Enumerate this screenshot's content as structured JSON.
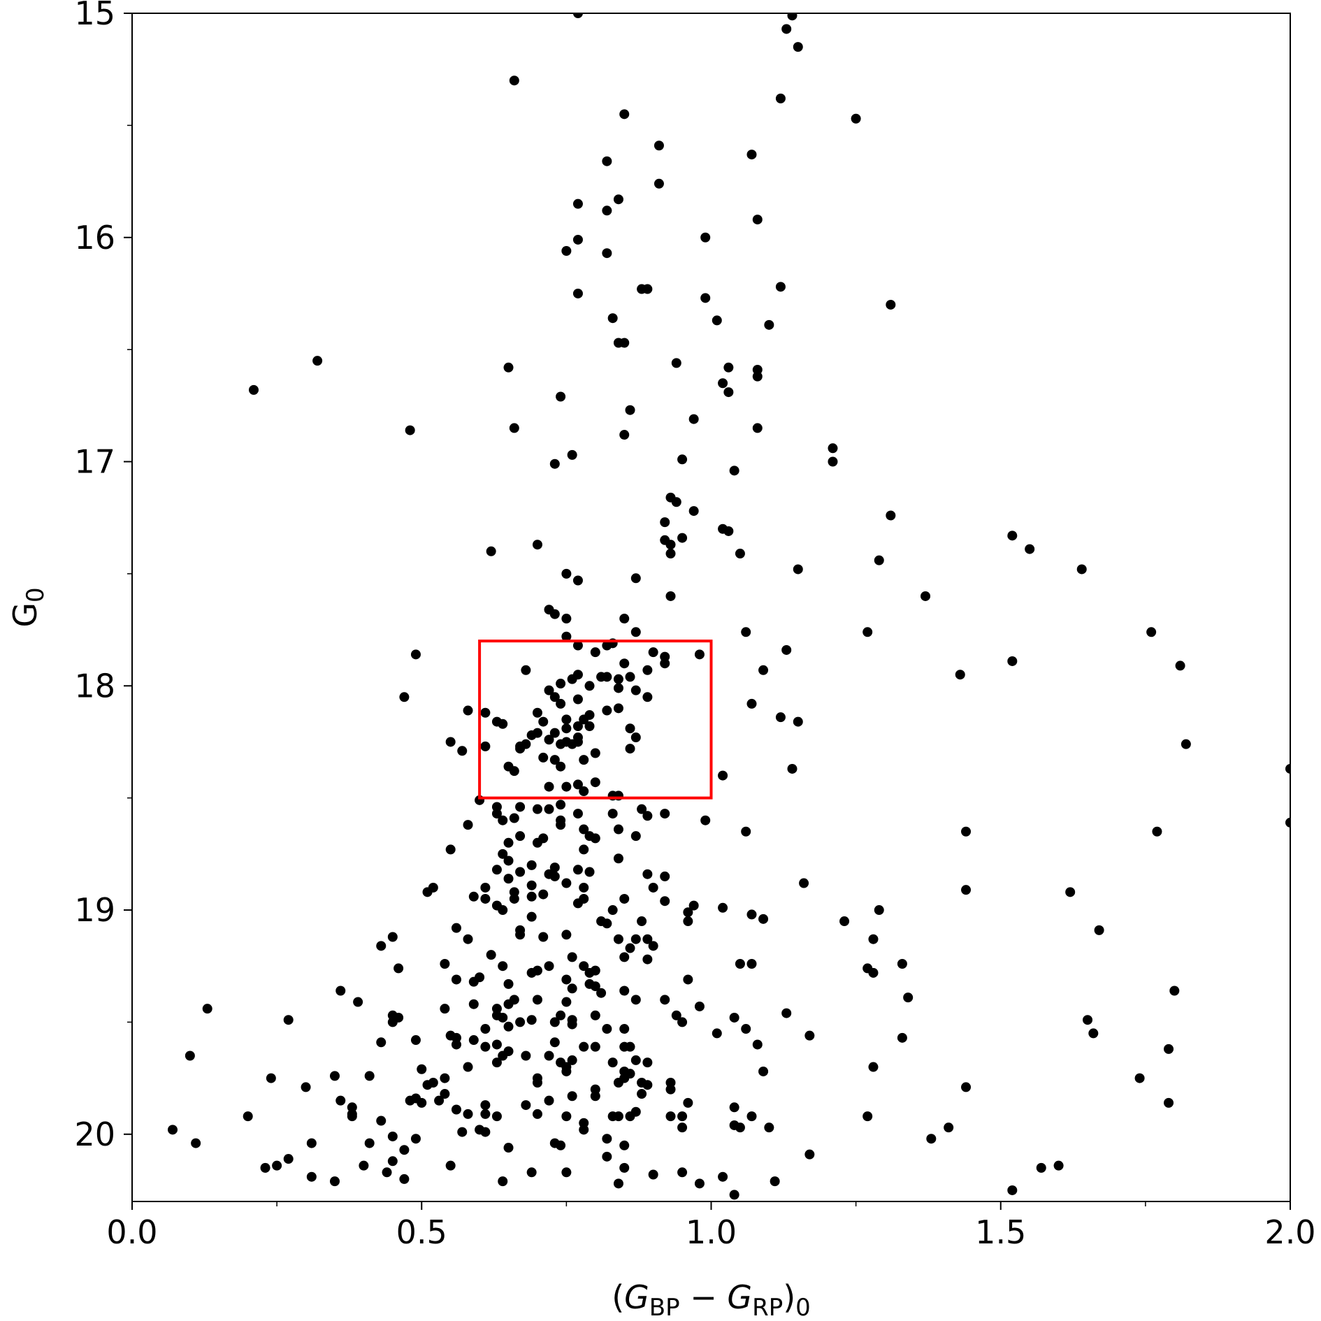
{
  "chart_data": {
    "type": "scatter",
    "xlabel": [
      {
        "text": "("
      },
      {
        "text": "G",
        "italic": true
      },
      {
        "text": "BP",
        "sub": true
      },
      {
        "text": " − "
      },
      {
        "text": "G",
        "italic": true
      },
      {
        "text": "RP",
        "sub": true
      },
      {
        "text": ")"
      },
      {
        "text": "0",
        "sub": true
      }
    ],
    "ylabel": [
      {
        "text": "G"
      },
      {
        "text": "0",
        "sub": true
      }
    ],
    "xlim": [
      0,
      2
    ],
    "ylim": [
      20.3,
      15
    ],
    "xticks": [
      {
        "value": 0,
        "label": "0.0"
      },
      {
        "value": 0.5,
        "label": "0.5"
      },
      {
        "value": 1,
        "label": "1.0"
      },
      {
        "value": 1.5,
        "label": "1.5"
      },
      {
        "value": 2,
        "label": "2.0"
      }
    ],
    "yticks": [
      15,
      16,
      17,
      18,
      19,
      20
    ],
    "xminorticks": [
      0.25,
      0.75,
      1.25,
      1.75
    ],
    "yminorticks": [
      15.5,
      16.5,
      17.5,
      18.5,
      19.5
    ],
    "color": "#000000",
    "highlight_box": {
      "x": [
        0.6,
        1.0
      ],
      "y": [
        17.8,
        18.5
      ],
      "color": "#ff0000"
    },
    "x": [
      0.77,
      1.14,
      1.13,
      1.15,
      0.66,
      1.12,
      0.85,
      1.25,
      0.91,
      1.07,
      0.82,
      0.91,
      0.77,
      0.84,
      0.82,
      1.08,
      0.99,
      0.77,
      0.75,
      0.82,
      1.12,
      0.89,
      0.88,
      0.77,
      0.99,
      1.31,
      0.83,
      1.01,
      1.1,
      0.84,
      0.85,
      0.32,
      0.94,
      0.65,
      1.03,
      1.08,
      1.08,
      1.02,
      0.21,
      1.03,
      0.74,
      0.86,
      0.97,
      0.48,
      0.66,
      1.08,
      0.85,
      1.21,
      0.76,
      1.21,
      0.95,
      0.73,
      1.04,
      0.93,
      0.94,
      0.97,
      1.31,
      0.92,
      1.02,
      1.03,
      1.52,
      0.92,
      0.95,
      0.93,
      0.7,
      1.55,
      0.62,
      0.93,
      1.05,
      1.29,
      1.15,
      1.64,
      0.75,
      0.77,
      0.87,
      1.37,
      0.93,
      0.72,
      0.73,
      0.75,
      0.85,
      1.06,
      1.27,
      1.76,
      0.75,
      0.87,
      0.82,
      0.83,
      0.77,
      0.49,
      0.9,
      0.98,
      0.92,
      0.8,
      1.13,
      1.52,
      1.81,
      0.92,
      0.85,
      0.68,
      0.89,
      1.09,
      0.77,
      0.81,
      0.86,
      0.76,
      0.82,
      0.84,
      0.74,
      0.79,
      1.43,
      0.84,
      0.87,
      0.72,
      0.73,
      0.89,
      0.47,
      0.77,
      0.74,
      1.07,
      0.84,
      0.82,
      0.58,
      0.61,
      0.7,
      0.79,
      0.78,
      1.12,
      0.75,
      0.71,
      0.63,
      0.64,
      1.15,
      0.79,
      0.77,
      0.86,
      0.75,
      0.7,
      0.73,
      0.69,
      0.87,
      0.77,
      0.72,
      0.75,
      0.55,
      0.77,
      0.68,
      0.76,
      1.82,
      0.74,
      0.67,
      0.61,
      0.67,
      0.86,
      0.57,
      0.8,
      0.71,
      0.73,
      0.78,
      0.74,
      0.65,
      0.66,
      1.14,
      2.0,
      1.02,
      0.77,
      0.72,
      0.75,
      0.8,
      0.78,
      0.84,
      0.83,
      0.6,
      0.74,
      0.88,
      0.63,
      0.67,
      0.7,
      0.72,
      0.77,
      0.92,
      0.83,
      0.89,
      0.63,
      0.66,
      0.99,
      0.74,
      2.0,
      0.58,
      0.64,
      0.74,
      0.78,
      0.84,
      1.06,
      1.44,
      0.67,
      0.87,
      1.77,
      0.79,
      0.8,
      0.71,
      0.65,
      0.7,
      0.78,
      0.55,
      0.64,
      0.84,
      0.65,
      0.69,
      0.63,
      0.73,
      0.67,
      0.77,
      0.79,
      0.73,
      0.72,
      0.89,
      0.92,
      0.65,
      1.16,
      0.75,
      0.69,
      0.61,
      0.78,
      0.52,
      0.9,
      1.44,
      1.62,
      0.51,
      0.66,
      0.71,
      0.59,
      0.61,
      0.78,
      0.85,
      0.66,
      0.69,
      0.92,
      0.97,
      0.77,
      1.02,
      0.63,
      0.64,
      1.29,
      0.96,
      0.83,
      0.69,
      1.07,
      1.09,
      1.23,
      0.88,
      0.96,
      0.81,
      0.82,
      0.56,
      1.67,
      0.67,
      0.67,
      0.45,
      0.71,
      0.75,
      0.58,
      0.84,
      0.89,
      0.87,
      1.28,
      0.43,
      0.9,
      0.86,
      0.62,
      0.76,
      0.85,
      0.89,
      1.33,
      1.05,
      1.07,
      0.54,
      0.64,
      0.72,
      0.78,
      0.46,
      1.27,
      0.7,
      1.28,
      0.8,
      0.79,
      0.6,
      0.69,
      0.56,
      0.96,
      0.75,
      0.59,
      0.79,
      0.65,
      0.8,
      0.76,
      0.36,
      0.81,
      0.85,
      1.8,
      0.66,
      1.34,
      0.92,
      0.39,
      0.87,
      0.7,
      0.75,
      0.59,
      0.65,
      0.98,
      0.13,
      0.54,
      0.63,
      1.13,
      0.94,
      0.45,
      0.63,
      0.74,
      0.46,
      0.64,
      0.8,
      1.04,
      0.27,
      0.76,
      1.65,
      0.69,
      0.45,
      0.95,
      0.73,
      0.67,
      0.76,
      0.65,
      0.82,
      0.85,
      1.06,
      0.61,
      1.66,
      1.01,
      1.17,
      0.55,
      0.56,
      1.33,
      0.59,
      0.49,
      0.73,
      0.43,
      0.63,
      0.56,
      0.8,
      0.78,
      1.08,
      0.61,
      0.85,
      0.86,
      1.79,
      0.65,
      0.1,
      0.64,
      0.68,
      0.72,
      0.63,
      0.83,
      0.74,
      0.76,
      0.87,
      0.89,
      0.58,
      1.28,
      0.75,
      1.09,
      0.5,
      0.85,
      0.75,
      0.35,
      0.86,
      0.7,
      0.85,
      0.24,
      0.41,
      1.74,
      0.54,
      0.84,
      0.88,
      0.52,
      0.7,
      0.93,
      1.44,
      0.51,
      0.89,
      0.8,
      0.3,
      0.54,
      0.88,
      0.93,
      0.76,
      0.8,
      0.36,
      0.48,
      0.5,
      0.53,
      1.79,
      0.72,
      0.49,
      0.96,
      0.68,
      0.61,
      1.04,
      0.38,
      0.56,
      0.87,
      0.61,
      0.63,
      0.7,
      0.83,
      0.58,
      0.95,
      0.38,
      0.75,
      0.38,
      1.07,
      0.2,
      0.93,
      0.86,
      0.84,
      1.27,
      0.43,
      0.78,
      0.95,
      1.41,
      1.04,
      1.05,
      1.1,
      0.6,
      0.07,
      0.57,
      0.61,
      0.78,
      0.49,
      1.38,
      0.82,
      0.45,
      0.11,
      0.31,
      0.41,
      0.73,
      0.74,
      0.85,
      0.65,
      0.47,
      1.17,
      0.82,
      0.27,
      0.45,
      0.4,
      0.55,
      1.6,
      0.25,
      0.23,
      1.57,
      0.69,
      0.75,
      0.85,
      0.44,
      0.95,
      0.9,
      0.31,
      1.02,
      0.35,
      0.47,
      0.64,
      1.11,
      0.84,
      0.98,
      1.52,
      1.04
    ],
    "values": [
      15.0,
      15.01,
      15.07,
      15.15,
      15.3,
      15.38,
      15.45,
      15.47,
      15.59,
      15.63,
      15.66,
      15.76,
      15.85,
      15.83,
      15.88,
      15.92,
      16.0,
      16.01,
      16.06,
      16.07,
      16.22,
      16.23,
      16.23,
      16.25,
      16.27,
      16.3,
      16.36,
      16.37,
      16.39,
      16.47,
      16.47,
      16.55,
      16.56,
      16.58,
      16.58,
      16.59,
      16.62,
      16.65,
      16.68,
      16.69,
      16.71,
      16.77,
      16.81,
      16.86,
      16.85,
      16.85,
      16.88,
      16.94,
      16.97,
      17.0,
      16.99,
      17.01,
      17.04,
      17.16,
      17.18,
      17.22,
      17.24,
      17.27,
      17.3,
      17.31,
      17.33,
      17.35,
      17.34,
      17.37,
      17.37,
      17.39,
      17.4,
      17.41,
      17.41,
      17.44,
      17.48,
      17.48,
      17.5,
      17.53,
      17.52,
      17.6,
      17.6,
      17.66,
      17.68,
      17.7,
      17.7,
      17.76,
      17.76,
      17.76,
      17.78,
      17.76,
      17.82,
      17.81,
      17.82,
      17.86,
      17.85,
      17.86,
      17.87,
      17.85,
      17.84,
      17.89,
      17.91,
      17.9,
      17.9,
      17.93,
      17.93,
      17.93,
      17.95,
      17.96,
      17.96,
      17.97,
      17.96,
      17.97,
      17.99,
      18.0,
      17.95,
      18.01,
      18.02,
      18.02,
      18.05,
      18.05,
      18.05,
      18.06,
      18.08,
      18.08,
      18.1,
      18.11,
      18.11,
      18.12,
      18.12,
      18.13,
      18.15,
      18.14,
      18.15,
      18.16,
      18.16,
      18.17,
      18.16,
      18.18,
      18.18,
      18.19,
      18.19,
      18.21,
      18.21,
      18.22,
      18.23,
      18.23,
      18.24,
      18.25,
      18.25,
      18.25,
      18.26,
      18.26,
      18.26,
      18.26,
      18.27,
      18.27,
      18.28,
      18.28,
      18.29,
      18.3,
      18.32,
      18.33,
      18.33,
      18.36,
      18.36,
      18.38,
      18.37,
      18.37,
      18.4,
      18.44,
      18.45,
      18.45,
      18.43,
      18.47,
      18.49,
      18.49,
      18.51,
      18.53,
      18.55,
      18.54,
      18.54,
      18.55,
      18.55,
      18.57,
      18.57,
      18.57,
      18.58,
      18.57,
      18.59,
      18.6,
      18.6,
      18.61,
      18.62,
      18.6,
      18.62,
      18.64,
      18.64,
      18.65,
      18.65,
      18.67,
      18.67,
      18.65,
      18.67,
      18.68,
      18.68,
      18.7,
      18.7,
      18.73,
      18.73,
      18.75,
      18.77,
      18.78,
      18.8,
      18.82,
      18.81,
      18.83,
      18.82,
      18.83,
      18.85,
      18.84,
      18.84,
      18.85,
      18.86,
      18.88,
      18.88,
      18.89,
      18.9,
      18.9,
      18.9,
      18.9,
      18.91,
      18.92,
      18.92,
      18.92,
      18.93,
      18.94,
      18.95,
      18.95,
      18.95,
      18.95,
      18.94,
      18.96,
      18.98,
      18.97,
      18.99,
      18.98,
      19.0,
      19.0,
      19.01,
      19.0,
      19.03,
      19.02,
      19.04,
      19.05,
      19.05,
      19.05,
      19.05,
      19.06,
      19.08,
      19.09,
      19.09,
      19.11,
      19.12,
      19.12,
      19.11,
      19.13,
      19.13,
      19.13,
      19.13,
      19.13,
      19.16,
      19.16,
      19.17,
      19.2,
      19.21,
      19.21,
      19.22,
      19.24,
      19.24,
      19.24,
      19.24,
      19.25,
      19.25,
      19.25,
      19.26,
      19.26,
      19.27,
      19.28,
      19.27,
      19.28,
      19.3,
      19.28,
      19.31,
      19.31,
      19.31,
      19.32,
      19.33,
      19.33,
      19.34,
      19.35,
      19.36,
      19.37,
      19.36,
      19.36,
      19.4,
      19.39,
      19.4,
      19.41,
      19.4,
      19.4,
      19.41,
      19.42,
      19.42,
      19.43,
      19.44,
      19.44,
      19.44,
      19.46,
      19.47,
      19.47,
      19.47,
      19.47,
      19.48,
      19.48,
      19.47,
      19.48,
      19.49,
      19.49,
      19.49,
      19.49,
      19.5,
      19.5,
      19.5,
      19.5,
      19.51,
      19.52,
      19.53,
      19.53,
      19.53,
      19.53,
      19.55,
      19.55,
      19.56,
      19.56,
      19.57,
      19.57,
      19.58,
      19.58,
      19.59,
      19.59,
      19.6,
      19.6,
      19.61,
      19.61,
      19.6,
      19.61,
      19.61,
      19.61,
      19.62,
      19.63,
      19.65,
      19.65,
      19.65,
      19.65,
      19.68,
      19.68,
      19.68,
      19.67,
      19.67,
      19.68,
      19.7,
      19.7,
      19.7,
      19.72,
      19.71,
      19.72,
      19.72,
      19.74,
      19.73,
      19.75,
      19.75,
      19.75,
      19.74,
      19.75,
      19.75,
      19.77,
      19.77,
      19.77,
      19.77,
      19.77,
      19.79,
      19.78,
      19.78,
      19.8,
      19.79,
      19.82,
      19.82,
      19.8,
      19.83,
      19.83,
      19.85,
      19.85,
      19.86,
      19.85,
      19.86,
      19.85,
      19.84,
      19.86,
      19.87,
      19.87,
      19.88,
      19.88,
      19.89,
      19.9,
      19.91,
      19.92,
      19.91,
      19.92,
      19.91,
      19.92,
      19.92,
      19.92,
      19.91,
      19.92,
      19.92,
      19.92,
      19.92,
      19.92,
      19.92,
      19.94,
      19.95,
      19.97,
      19.97,
      19.96,
      19.97,
      19.97,
      19.98,
      19.98,
      19.99,
      19.99,
      19.98,
      20.02,
      20.02,
      20.02,
      20.01,
      20.04,
      20.04,
      20.04,
      20.04,
      20.05,
      20.05,
      20.06,
      20.07,
      20.09,
      20.1,
      20.11,
      20.12,
      20.14,
      20.14,
      20.14,
      20.14,
      20.15,
      20.15,
      20.17,
      20.17,
      20.15,
      20.17,
      20.17,
      20.18,
      20.19,
      20.19,
      20.21,
      20.2,
      20.21,
      20.21,
      20.22,
      20.22,
      20.25,
      20.27
    ]
  }
}
